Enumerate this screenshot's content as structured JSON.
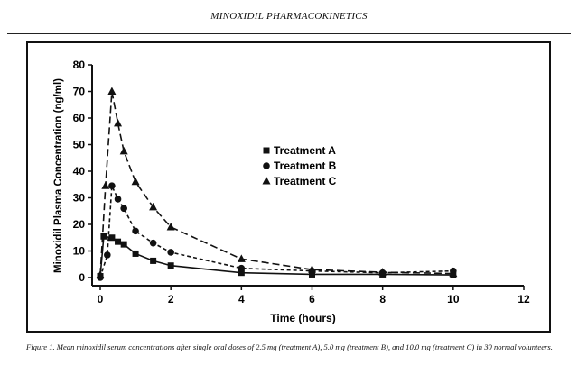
{
  "header": "MINOXIDIL PHARMACOKINETICS",
  "caption": "Figure 1. Mean minoxidil serum concentrations after single oral doses of 2.5 mg (treatment A), 5.0 mg (treatment B), and 10.0 mg (treatment C) in 30 normal volunteers.",
  "chart_data": {
    "type": "line",
    "title": "",
    "xlabel": "Time (hours)",
    "ylabel": "Minoxidil Plasma Concentration (ng/ml)",
    "xlim": [
      0,
      12
    ],
    "ylim": [
      0,
      80
    ],
    "xticks": [
      0,
      2,
      4,
      6,
      8,
      10,
      12
    ],
    "yticks": [
      0,
      10,
      20,
      30,
      40,
      50,
      60,
      70,
      80
    ],
    "grid": false,
    "legend_position": "center",
    "series": [
      {
        "name": "Treatment A",
        "marker": "square",
        "line": "solid",
        "x": [
          0,
          0.1,
          0.33,
          0.5,
          0.67,
          1,
          1.5,
          2,
          4,
          6,
          8,
          10
        ],
        "y": [
          0.5,
          15.5,
          15,
          13.5,
          12.5,
          9,
          6.3,
          4.5,
          1.8,
          1.2,
          1.2,
          1
        ]
      },
      {
        "name": "Treatment B",
        "marker": "circle",
        "line": "dotted",
        "x": [
          0,
          0.2,
          0.33,
          0.5,
          0.67,
          1,
          1.5,
          2,
          4,
          6,
          8,
          10
        ],
        "y": [
          0,
          8.5,
          34.5,
          29.5,
          26,
          17.5,
          13,
          9.5,
          3.5,
          2.5,
          1.8,
          2.5
        ]
      },
      {
        "name": "Treatment C",
        "marker": "triangle",
        "line": "dashed",
        "x": [
          0,
          0.15,
          0.33,
          0.5,
          0.67,
          1,
          1.5,
          2,
          4,
          6,
          8,
          10
        ],
        "y": [
          1,
          34.5,
          70,
          58,
          47.5,
          36,
          26.5,
          19,
          7,
          3,
          2,
          1.5
        ]
      }
    ]
  }
}
